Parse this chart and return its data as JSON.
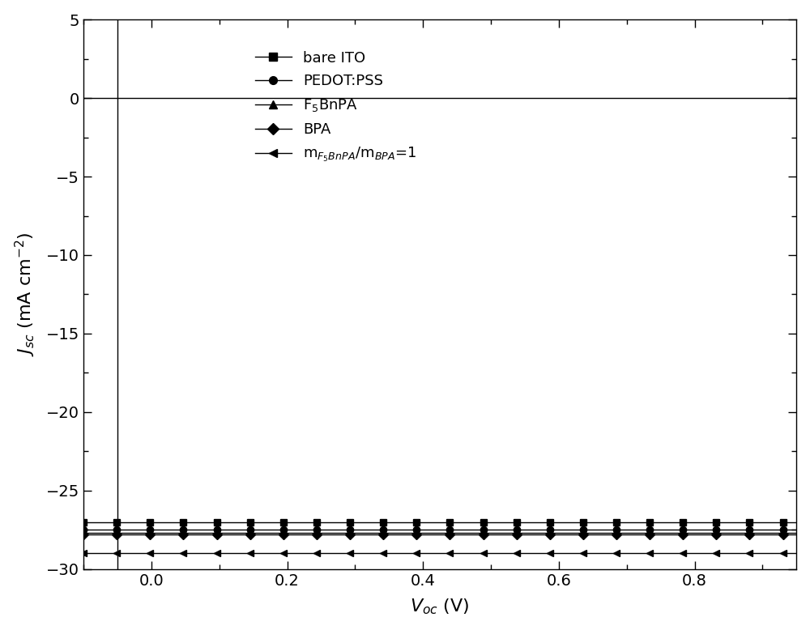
{
  "title": "",
  "xlabel": "V$_{oc}$ (V)",
  "ylabel": "J$_{sc}$ (mA cm$^{-2}$)",
  "xlim": [
    -0.1,
    0.95
  ],
  "ylim": [
    -30,
    5
  ],
  "xticks": [
    0.0,
    0.2,
    0.4,
    0.6,
    0.8
  ],
  "yticks": [
    5,
    0,
    -5,
    -10,
    -15,
    -20,
    -25,
    -30
  ],
  "background_color": "#ffffff",
  "line_color": "#000000",
  "series": [
    {
      "label": "bare ITO",
      "marker": "s",
      "Jsc": -27.0,
      "Voc": 0.735,
      "J0": 0.00015,
      "n": 3.5,
      "Rs": 4.0
    },
    {
      "label": "PEDOT:PSS",
      "marker": "o",
      "Jsc": -27.5,
      "Voc": 0.855,
      "J0": 1.2e-06,
      "n": 2.2,
      "Rs": 2.5
    },
    {
      "label": "F$_5$BnPA",
      "marker": "^",
      "Jsc": -27.7,
      "Voc": 0.865,
      "J0": 9e-07,
      "n": 2.1,
      "Rs": 2.2
    },
    {
      "label": "BPA",
      "marker": "D",
      "Jsc": -27.8,
      "Voc": 0.875,
      "J0": 7e-07,
      "n": 2.0,
      "Rs": 2.0
    },
    {
      "label": "m$_{F_5BnPA}$/m$_{BPA}$=1",
      "marker": "<",
      "Jsc": -29.0,
      "Voc": 0.89,
      "J0": 5e-07,
      "n": 1.9,
      "Rs": 1.8
    }
  ],
  "vline_x": -0.05,
  "hline_y": 0
}
